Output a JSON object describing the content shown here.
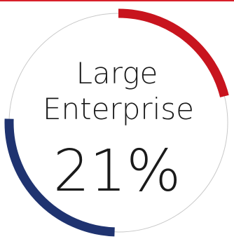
{
  "colors": {
    "top_rule": "#d8202a",
    "ring_outline": "#c8c8c8",
    "accent_red": "#c8141e",
    "accent_navy": "#1f3370",
    "text": "#1a1a1a"
  },
  "chart_data": {
    "type": "pie",
    "title_line1": "Large",
    "title_line2": "Enterprise",
    "value_label": "21%",
    "value": 21,
    "segments": [
      {
        "color": "#c8141e",
        "start_deg": 0,
        "end_deg": 76
      },
      {
        "color": "#1f3370",
        "start_deg": 182,
        "end_deg": 272
      }
    ]
  }
}
